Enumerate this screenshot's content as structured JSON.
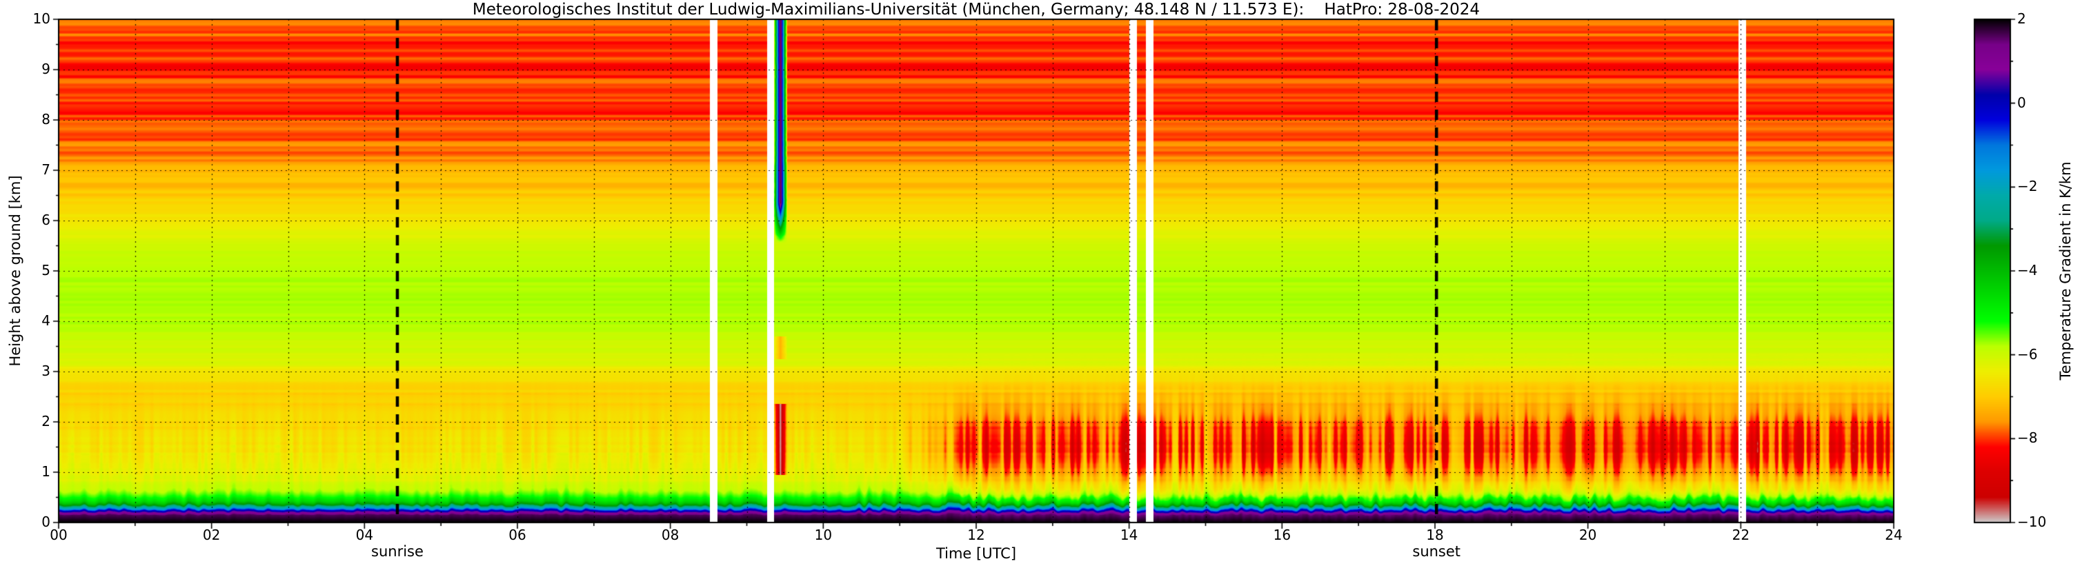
{
  "chart_data": {
    "type": "heatmap",
    "title": "Meteorologisches Institut der Ludwig-Maximilians-Universität (München, Germany; 48.148 N / 11.573 E):    HatPro: 28-08-2024",
    "xlabel": "Time [UTC]",
    "ylabel": "Height above ground [km]",
    "colorbar_label": "Temperature Gradient in K/km",
    "x_range_utc_hours": [
      0,
      24
    ],
    "y_range_km": [
      0,
      10
    ],
    "value_range_k_per_km": [
      -10,
      2
    ],
    "grid": {
      "style": "dotted",
      "x_step_hours": 1,
      "y_step_km": 1
    },
    "x_ticks": {
      "values": [
        0,
        2,
        4,
        6,
        8,
        10,
        12,
        14,
        16,
        18,
        20,
        22,
        24
      ],
      "labels": [
        "00",
        "02",
        "04",
        "06",
        "08",
        "10",
        "12",
        "14",
        "16",
        "18",
        "20",
        "22",
        "24"
      ]
    },
    "y_ticks": {
      "values": [
        0,
        1,
        2,
        3,
        4,
        5,
        6,
        7,
        8,
        9,
        10
      ],
      "labels": [
        "0",
        "1",
        "2",
        "3",
        "4",
        "5",
        "6",
        "7",
        "8",
        "9",
        "10"
      ]
    },
    "colorbar_ticks": {
      "values": [
        2,
        0,
        -2,
        -4,
        -6,
        -8,
        -10
      ],
      "labels": [
        "2",
        "0",
        "−2",
        "−4",
        "−6",
        "−8",
        "−10"
      ],
      "minor_values": [
        1,
        -1,
        -3,
        -5,
        -7,
        -9
      ]
    },
    "colormap": {
      "name": "nipy_spectral (2 K/km = black at top, −10 K/km = grey at bottom)",
      "stops": [
        [
          0.0,
          "#000000"
        ],
        [
          0.05,
          "#770088"
        ],
        [
          0.1,
          "#880099"
        ],
        [
          0.15,
          "#0000aa"
        ],
        [
          0.2,
          "#0000dd"
        ],
        [
          0.25,
          "#0077dd"
        ],
        [
          0.3,
          "#0099dd"
        ],
        [
          0.35,
          "#00aaaa"
        ],
        [
          0.4,
          "#00aa88"
        ],
        [
          0.45,
          "#009900"
        ],
        [
          0.5,
          "#00bb00"
        ],
        [
          0.55,
          "#00dd00"
        ],
        [
          0.6,
          "#00ff00"
        ],
        [
          0.65,
          "#bbff00"
        ],
        [
          0.7,
          "#eeee00"
        ],
        [
          0.75,
          "#ffcc00"
        ],
        [
          0.8,
          "#ff9900"
        ],
        [
          0.85,
          "#ff0000"
        ],
        [
          0.9,
          "#dd0000"
        ],
        [
          0.95,
          "#cc0000"
        ],
        [
          1.0,
          "#cccccc"
        ]
      ]
    },
    "events": {
      "sunrise_label": "sunrise",
      "sunrise_time_utc": 4.43,
      "sunset_label": "sunset",
      "sunset_time_utc": 18.02
    },
    "data_gaps_utc": [
      [
        8.52,
        8.62
      ],
      [
        9.27,
        9.36
      ],
      [
        14.0,
        14.1
      ],
      [
        14.22,
        14.32
      ],
      [
        21.97,
        22.07
      ]
    ],
    "mean_profile_gradient_vs_height": [
      [
        0.0,
        2.0
      ],
      [
        0.15,
        1.6
      ],
      [
        0.2,
        0.8
      ],
      [
        0.24,
        -0.2
      ],
      [
        0.29,
        -2.0
      ],
      [
        0.34,
        -3.2
      ],
      [
        0.4,
        -4.3
      ],
      [
        0.5,
        -5.2
      ],
      [
        0.65,
        -5.8
      ],
      [
        0.85,
        -6.2
      ],
      [
        1.3,
        -6.5
      ],
      [
        2.0,
        -6.8
      ],
      [
        2.6,
        -6.9
      ],
      [
        3.2,
        -6.2
      ],
      [
        3.8,
        -5.8
      ],
      [
        4.6,
        -5.7
      ],
      [
        5.3,
        -5.9
      ],
      [
        5.9,
        -6.4
      ],
      [
        6.5,
        -7.0
      ],
      [
        7.1,
        -7.4
      ],
      [
        7.7,
        -7.9
      ],
      [
        8.5,
        -8.0
      ],
      [
        9.3,
        -8.0
      ],
      [
        10.0,
        -7.9
      ]
    ],
    "afternoon_mixing": {
      "ramp_start_utc": 10.7,
      "ramp_full_utc": 12.3,
      "center_km": 1.45,
      "sigma_km": 0.55,
      "gradient_delta": -1.6
    },
    "anomaly_event": {
      "time_utc": 9.44,
      "halfwidth_hours": 0.09,
      "upper_column": {
        "from_km": 5.55,
        "blend_km": 0.8,
        "gradient": 1.8
      },
      "lower_blob": {
        "from_km": 0.95,
        "to_km": 2.35,
        "gradient": -9.9
      },
      "mid_dot": {
        "from_km": 3.25,
        "to_km": 3.7,
        "gradient": -7.3
      }
    },
    "texture": {
      "seed": 7,
      "stripe_amp_by_height": [
        [
          0,
          0.04
        ],
        [
          0.7,
          0.07
        ],
        [
          1.4,
          0.13
        ],
        [
          2.1,
          0.17
        ],
        [
          3.2,
          0.15
        ],
        [
          4.0,
          0.09
        ],
        [
          6.0,
          0.11
        ],
        [
          6.7,
          0.2
        ],
        [
          7.5,
          0.28
        ],
        [
          10,
          0.3
        ]
      ],
      "stripe_amp2_above_km": 6.6,
      "stripe_amp2": 0.16,
      "boundary_layer_noise": {
        "base_amp": 0.3,
        "extra_amp": 0.9,
        "slow_amp": 0.3
      },
      "ground_wiggle": {
        "base_amp": 0.1,
        "extra_amp": 0.07
      }
    }
  }
}
